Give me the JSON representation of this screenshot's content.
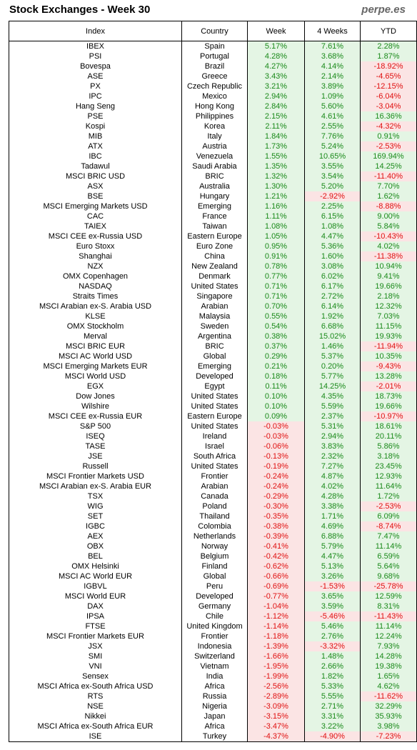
{
  "title": "Stock Exchanges - Week 30",
  "brand": "perpe.es",
  "colors": {
    "positive": "#1a8a1a",
    "negative": "#e01010",
    "positive_bg": "#e4f5e4",
    "negative_bg": "#fbe4e4"
  },
  "headers": [
    "Index",
    "Country",
    "Week",
    "4 Weeks",
    "YTD"
  ],
  "rows": [
    [
      "IBEX",
      "Spain",
      "5.17%",
      "7.61%",
      "2.28%"
    ],
    [
      "PSI",
      "Portugal",
      "4.28%",
      "3.68%",
      "1.87%"
    ],
    [
      "Bovespa",
      "Brazil",
      "4.27%",
      "4.14%",
      "-18.92%"
    ],
    [
      "ASE",
      "Greece",
      "3.43%",
      "2.14%",
      "-4.65%"
    ],
    [
      "PX",
      "Czech Republic",
      "3.21%",
      "3.89%",
      "-12.15%"
    ],
    [
      "IPC",
      "Mexico",
      "2.94%",
      "1.09%",
      "-6.04%"
    ],
    [
      "Hang Seng",
      "Hong Kong",
      "2.84%",
      "5.60%",
      "-3.04%"
    ],
    [
      "PSE",
      "Philippines",
      "2.15%",
      "4.61%",
      "16.36%"
    ],
    [
      "Kospi",
      "Korea",
      "2.11%",
      "2.55%",
      "-4.32%"
    ],
    [
      "MIB",
      "Italy",
      "1.84%",
      "7.76%",
      "0.91%"
    ],
    [
      "ATX",
      "Austria",
      "1.73%",
      "5.24%",
      "-2.53%"
    ],
    [
      "IBC",
      "Venezuela",
      "1.55%",
      "10.65%",
      "169.94%"
    ],
    [
      "Tadawul",
      "Saudi Arabia",
      "1.35%",
      "3.55%",
      "14.25%"
    ],
    [
      "MSCI BRIC USD",
      "BRIC",
      "1.32%",
      "3.54%",
      "-11.40%"
    ],
    [
      "ASX",
      "Australia",
      "1.30%",
      "5.20%",
      "7.70%"
    ],
    [
      "BSE",
      "Hungary",
      "1.21%",
      "-2.92%",
      "1.62%"
    ],
    [
      "MSCI Emerging Markets USD",
      "Emerging",
      "1.16%",
      "2.25%",
      "-8.88%"
    ],
    [
      "CAC",
      "France",
      "1.11%",
      "6.15%",
      "9.00%"
    ],
    [
      "TAIEX",
      "Taiwan",
      "1.08%",
      "1.08%",
      "5.84%"
    ],
    [
      "MSCI CEE ex-Russia USD",
      "Eastern Europe",
      "1.05%",
      "4.47%",
      "-10.43%"
    ],
    [
      "Euro Stoxx",
      "Euro Zone",
      "0.95%",
      "5.36%",
      "4.02%"
    ],
    [
      "Shanghai",
      "China",
      "0.91%",
      "1.60%",
      "-11.38%"
    ],
    [
      "NZX",
      "New Zealand",
      "0.78%",
      "3.08%",
      "10.94%"
    ],
    [
      "OMX Copenhagen",
      "Denmark",
      "0.77%",
      "6.02%",
      "9.41%"
    ],
    [
      "NASDAQ",
      "United States",
      "0.71%",
      "6.17%",
      "19.66%"
    ],
    [
      "Straits Times",
      "Singapore",
      "0.71%",
      "2.72%",
      "2.18%"
    ],
    [
      "MSCI Arabian ex-S. Arabia USD",
      "Arabian",
      "0.70%",
      "6.14%",
      "12.32%"
    ],
    [
      "KLSE",
      "Malaysia",
      "0.55%",
      "1.92%",
      "7.03%"
    ],
    [
      "OMX Stockholm",
      "Sweden",
      "0.54%",
      "6.68%",
      "11.15%"
    ],
    [
      "Merval",
      "Argentina",
      "0.38%",
      "15.02%",
      "19.93%"
    ],
    [
      "MSCI BRIC EUR",
      "BRIC",
      "0.37%",
      "1.46%",
      "-11.94%"
    ],
    [
      "MSCI AC World USD",
      "Global",
      "0.29%",
      "5.37%",
      "10.35%"
    ],
    [
      "MSCI Emerging Markets EUR",
      "Emerging",
      "0.21%",
      "0.20%",
      "-9.43%"
    ],
    [
      "MSCI World USD",
      "Developed",
      "0.18%",
      "5.77%",
      "13.28%"
    ],
    [
      "EGX",
      "Egypt",
      "0.11%",
      "14.25%",
      "-2.01%"
    ],
    [
      "Dow Jones",
      "United States",
      "0.10%",
      "4.35%",
      "18.73%"
    ],
    [
      "Wilshire",
      "United States",
      "0.10%",
      "5.59%",
      "19.66%"
    ],
    [
      "MSCI CEE ex-Russia EUR",
      "Eastern Europe",
      "0.09%",
      "2.37%",
      "-10.97%"
    ],
    [
      "S&P 500",
      "United States",
      "-0.03%",
      "5.31%",
      "18.61%"
    ],
    [
      "ISEQ",
      "Ireland",
      "-0.03%",
      "2.94%",
      "20.11%"
    ],
    [
      "TASE",
      "Israel",
      "-0.06%",
      "3.83%",
      "5.86%"
    ],
    [
      "JSE",
      "South Africa",
      "-0.13%",
      "2.32%",
      "3.18%"
    ],
    [
      "Russell",
      "United States",
      "-0.19%",
      "7.27%",
      "23.45%"
    ],
    [
      "MSCI Frontier Markets USD",
      "Frontier",
      "-0.24%",
      "4.87%",
      "12.93%"
    ],
    [
      "MSCI Arabian ex-S. Arabia EUR",
      "Arabian",
      "-0.24%",
      "4.02%",
      "11.64%"
    ],
    [
      "TSX",
      "Canada",
      "-0.29%",
      "4.28%",
      "1.72%"
    ],
    [
      "WIG",
      "Poland",
      "-0.30%",
      "3.38%",
      "-2.53%"
    ],
    [
      "SET",
      "Thailand",
      "-0.35%",
      "1.71%",
      "6.09%"
    ],
    [
      "IGBC",
      "Colombia",
      "-0.38%",
      "4.69%",
      "-8.74%"
    ],
    [
      "AEX",
      "Netherlands",
      "-0.39%",
      "6.88%",
      "7.47%"
    ],
    [
      "OBX",
      "Norway",
      "-0.41%",
      "5.79%",
      "11.14%"
    ],
    [
      "BEL",
      "Belgium",
      "-0.42%",
      "4.47%",
      "6.59%"
    ],
    [
      "OMX Helsinki",
      "Finland",
      "-0.62%",
      "5.13%",
      "5.64%"
    ],
    [
      "MSCI AC World EUR",
      "Global",
      "-0.66%",
      "3.26%",
      "9.68%"
    ],
    [
      "IGBVL",
      "Peru",
      "-0.69%",
      "-1.53%",
      "-25.78%"
    ],
    [
      "MSCI World EUR",
      "Developed",
      "-0.77%",
      "3.65%",
      "12.59%"
    ],
    [
      "DAX",
      "Germany",
      "-1.04%",
      "3.59%",
      "8.31%"
    ],
    [
      "IPSA",
      "Chile",
      "-1.12%",
      "-5.46%",
      "-11.43%"
    ],
    [
      "FTSE",
      "United Kingdom",
      "-1.14%",
      "5.46%",
      "11.14%"
    ],
    [
      "MSCI Frontier Markets EUR",
      "Frontier",
      "-1.18%",
      "2.76%",
      "12.24%"
    ],
    [
      "JSX",
      "Indonesia",
      "-1.39%",
      "-3.32%",
      "7.93%"
    ],
    [
      "SMI",
      "Switzerland",
      "-1.66%",
      "1.48%",
      "14.28%"
    ],
    [
      "VNI",
      "Vietnam",
      "-1.95%",
      "2.66%",
      "19.38%"
    ],
    [
      "Sensex",
      "India",
      "-1.99%",
      "1.82%",
      "1.65%"
    ],
    [
      "MSCI Africa ex-South Africa USD",
      "Africa",
      "-2.56%",
      "5.33%",
      "4.62%"
    ],
    [
      "RTS",
      "Russia",
      "-2.89%",
      "5.55%",
      "-11.62%"
    ],
    [
      "NSE",
      "Nigeria",
      "-3.09%",
      "2.71%",
      "32.29%"
    ],
    [
      "Nikkei",
      "Japan",
      "-3.15%",
      "3.31%",
      "35.93%"
    ],
    [
      "MSCI Africa ex-South Africa EUR",
      "Africa",
      "-3.47%",
      "3.22%",
      "3.98%"
    ],
    [
      "ISE",
      "Turkey",
      "-4.37%",
      "-4.90%",
      "-7.23%"
    ]
  ]
}
